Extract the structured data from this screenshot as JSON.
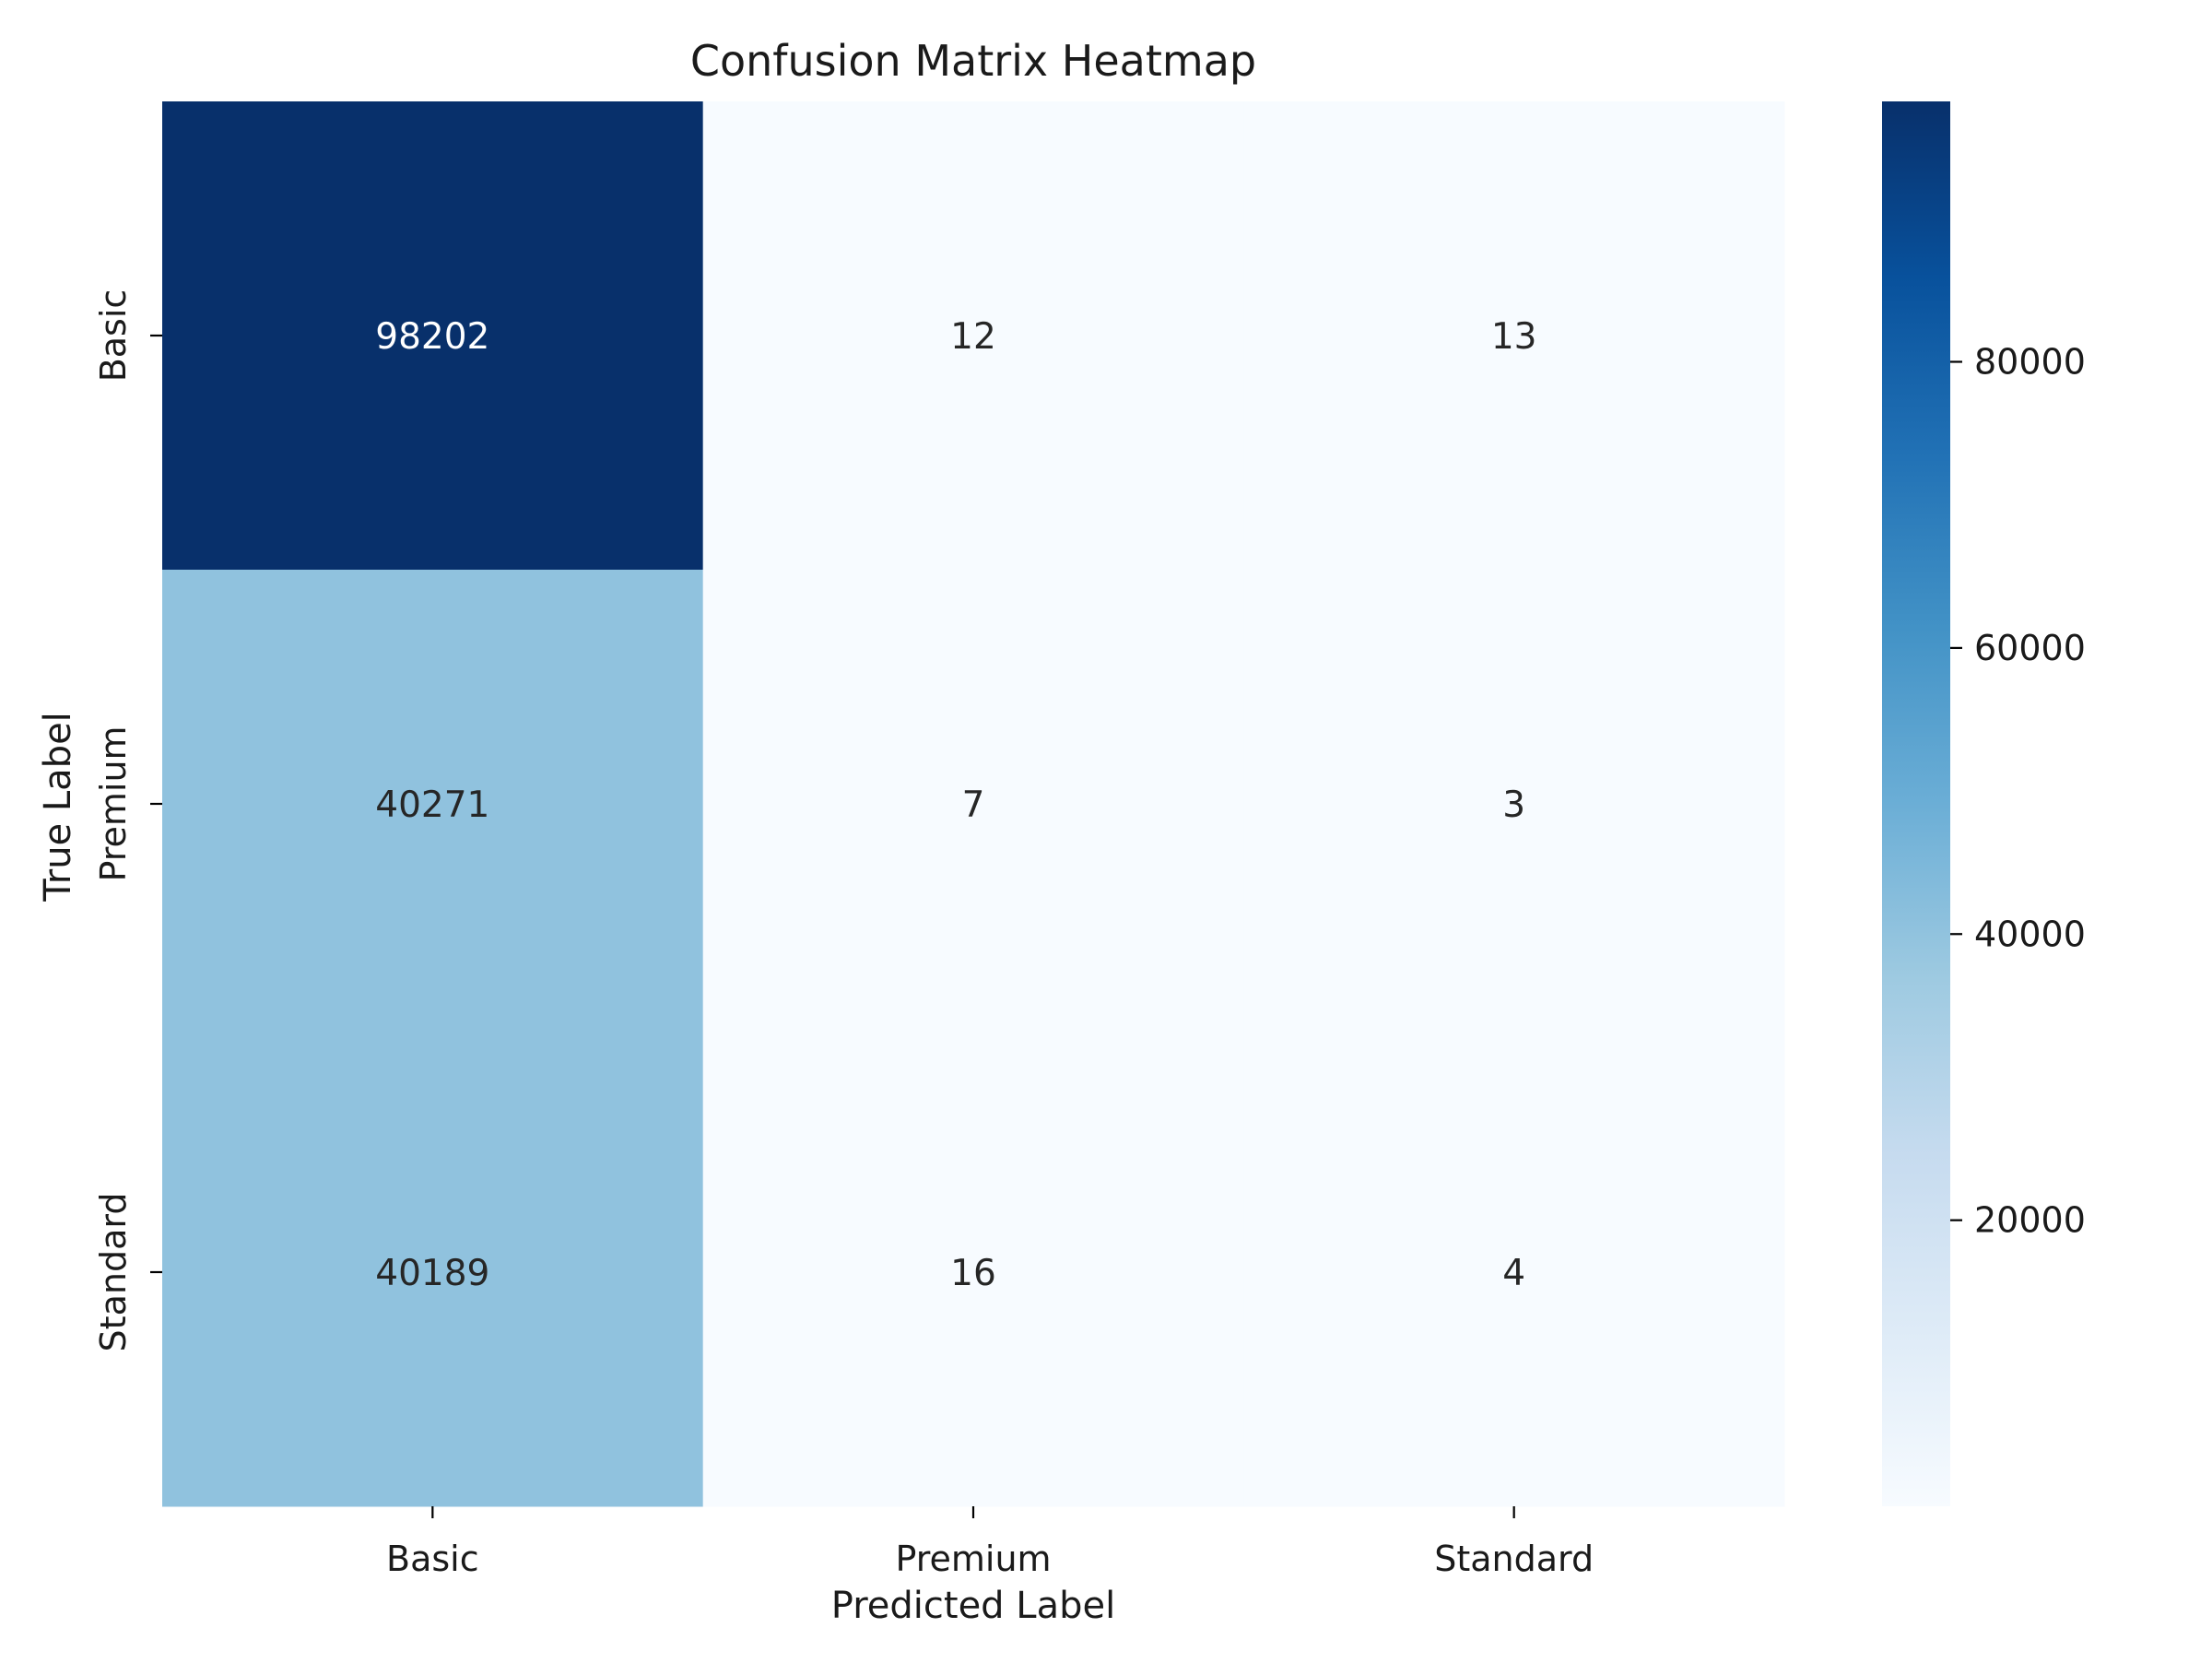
{
  "chart_data": {
    "type": "heatmap",
    "title": "Confusion Matrix Heatmap",
    "xlabel": "Predicted Label",
    "ylabel": "True Label",
    "x_categories": [
      "Basic",
      "Premium",
      "Standard"
    ],
    "y_categories": [
      "Basic",
      "Premium",
      "Standard"
    ],
    "values": [
      [
        98202,
        12,
        13
      ],
      [
        40271,
        7,
        3
      ],
      [
        40189,
        16,
        4
      ]
    ],
    "colormap": "Blues",
    "colorbar": {
      "range": [
        3,
        98202
      ],
      "ticks": [
        20000,
        40000,
        60000,
        80000
      ],
      "tick_labels": [
        "20000",
        "40000",
        "60000",
        "80000"
      ]
    },
    "colors": {
      "low": "#f7fbff",
      "high": "#08306b",
      "text_dark": "#262626",
      "text_light": "#ffffff"
    }
  }
}
